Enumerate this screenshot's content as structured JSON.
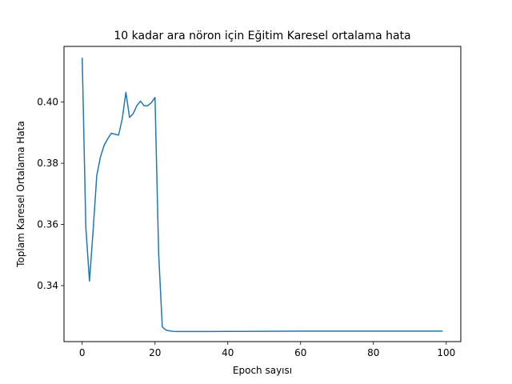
{
  "chart_data": {
    "type": "line",
    "title": "10 kadar ara nöron için  Eğitim Karesel ortalama hata",
    "xlabel": "Epoch sayısı",
    "ylabel": "Toplam Karesel Ortalama Hata",
    "xlim": [
      -5,
      104
    ],
    "ylim": [
      0.3217,
      0.4182
    ],
    "xticks": [
      0,
      20,
      40,
      60,
      80,
      100
    ],
    "yticks": [
      0.34,
      0.36,
      0.38,
      0.4
    ],
    "xtick_labels": [
      "0",
      "20",
      "40",
      "60",
      "80",
      "100"
    ],
    "ytick_labels": [
      "0.34",
      "0.36",
      "0.38",
      "0.40"
    ],
    "grid": false,
    "series": [
      {
        "color": "#1f77b4",
        "x": [
          0,
          1,
          2,
          3,
          4,
          5,
          6,
          7,
          8,
          9,
          10,
          11,
          12,
          13,
          14,
          15,
          16,
          17,
          18,
          19,
          20,
          21,
          22,
          23,
          24,
          25,
          26,
          27,
          28,
          29,
          30,
          35,
          40,
          45,
          50,
          55,
          60,
          65,
          70,
          75,
          80,
          85,
          90,
          95,
          99
        ],
        "y": [
          0.4145,
          0.359,
          0.3415,
          0.358,
          0.376,
          0.382,
          0.3858,
          0.388,
          0.3898,
          0.3895,
          0.3892,
          0.3945,
          0.4032,
          0.395,
          0.3962,
          0.3988,
          0.4003,
          0.3988,
          0.3988,
          0.3998,
          0.4015,
          0.3505,
          0.3265,
          0.3255,
          0.3252,
          0.32505,
          0.325,
          0.325,
          0.325,
          0.325,
          0.325,
          0.325,
          0.32502,
          0.32505,
          0.32508,
          0.3251,
          0.32512,
          0.32512,
          0.32512,
          0.32512,
          0.32512,
          0.32512,
          0.32512,
          0.32512,
          0.32512
        ]
      }
    ]
  }
}
